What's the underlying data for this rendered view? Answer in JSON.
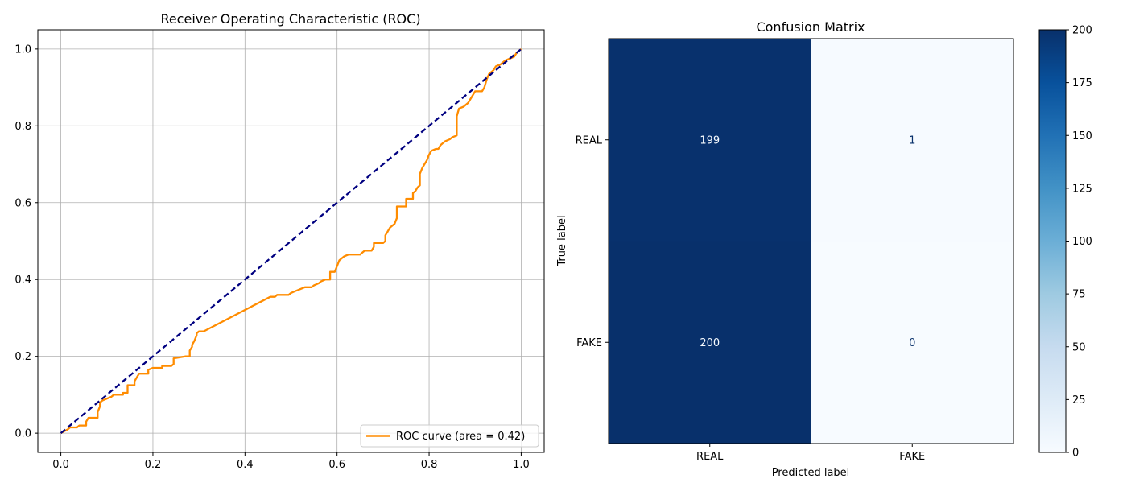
{
  "chart_data": [
    {
      "type": "line",
      "title": "Receiver Operating Characteristic (ROC)",
      "xlabel": "",
      "ylabel": "",
      "xlim": [
        -0.05,
        1.05
      ],
      "ylim": [
        -0.05,
        1.05
      ],
      "grid": true,
      "x_ticks": [
        "0.0",
        "0.2",
        "0.4",
        "0.6",
        "0.8",
        "1.0"
      ],
      "y_ticks": [
        "0.0",
        "0.2",
        "0.4",
        "0.6",
        "0.8",
        "1.0"
      ],
      "legend": {
        "placement": "lower-right",
        "entries": [
          "ROC curve (area = 0.42)"
        ]
      },
      "series": [
        {
          "name": "ROC curve (area = 0.42)",
          "color": "#ff8c00",
          "style": "solid",
          "points": [
            [
              0.0,
              0.0
            ],
            [
              0.015,
              0.01
            ],
            [
              0.02,
              0.015
            ],
            [
              0.035,
              0.015
            ],
            [
              0.04,
              0.02
            ],
            [
              0.055,
              0.02
            ],
            [
              0.055,
              0.03
            ],
            [
              0.06,
              0.04
            ],
            [
              0.08,
              0.04
            ],
            [
              0.08,
              0.055
            ],
            [
              0.085,
              0.07
            ],
            [
              0.085,
              0.08
            ],
            [
              0.09,
              0.085
            ],
            [
              0.1,
              0.09
            ],
            [
              0.11,
              0.095
            ],
            [
              0.115,
              0.1
            ],
            [
              0.135,
              0.1
            ],
            [
              0.135,
              0.105
            ],
            [
              0.145,
              0.105
            ],
            [
              0.145,
              0.125
            ],
            [
              0.16,
              0.125
            ],
            [
              0.16,
              0.135
            ],
            [
              0.165,
              0.145
            ],
            [
              0.17,
              0.155
            ],
            [
              0.19,
              0.155
            ],
            [
              0.19,
              0.165
            ],
            [
              0.2,
              0.17
            ],
            [
              0.22,
              0.17
            ],
            [
              0.22,
              0.175
            ],
            [
              0.24,
              0.175
            ],
            [
              0.245,
              0.18
            ],
            [
              0.245,
              0.195
            ],
            [
              0.27,
              0.2
            ],
            [
              0.27,
              0.2
            ],
            [
              0.28,
              0.2
            ],
            [
              0.28,
              0.215
            ],
            [
              0.285,
              0.225
            ],
            [
              0.285,
              0.23
            ],
            [
              0.29,
              0.24
            ],
            [
              0.295,
              0.255
            ],
            [
              0.295,
              0.26
            ],
            [
              0.3,
              0.265
            ],
            [
              0.31,
              0.265
            ],
            [
              0.455,
              0.355
            ],
            [
              0.465,
              0.355
            ],
            [
              0.47,
              0.36
            ],
            [
              0.495,
              0.36
            ],
            [
              0.5,
              0.365
            ],
            [
              0.51,
              0.37
            ],
            [
              0.52,
              0.375
            ],
            [
              0.53,
              0.38
            ],
            [
              0.545,
              0.38
            ],
            [
              0.55,
              0.385
            ],
            [
              0.56,
              0.39
            ],
            [
              0.565,
              0.395
            ],
            [
              0.575,
              0.4
            ],
            [
              0.585,
              0.4
            ],
            [
              0.585,
              0.42
            ],
            [
              0.595,
              0.42
            ],
            [
              0.6,
              0.435
            ],
            [
              0.605,
              0.45
            ],
            [
              0.61,
              0.455
            ],
            [
              0.615,
              0.46
            ],
            [
              0.625,
              0.465
            ],
            [
              0.65,
              0.465
            ],
            [
              0.655,
              0.47
            ],
            [
              0.66,
              0.475
            ],
            [
              0.675,
              0.475
            ],
            [
              0.68,
              0.485
            ],
            [
              0.68,
              0.495
            ],
            [
              0.7,
              0.495
            ],
            [
              0.705,
              0.5
            ],
            [
              0.705,
              0.515
            ],
            [
              0.71,
              0.525
            ],
            [
              0.715,
              0.535
            ],
            [
              0.72,
              0.54
            ],
            [
              0.725,
              0.545
            ],
            [
              0.73,
              0.56
            ],
            [
              0.73,
              0.59
            ],
            [
              0.75,
              0.59
            ],
            [
              0.75,
              0.61
            ],
            [
              0.765,
              0.61
            ],
            [
              0.765,
              0.625
            ],
            [
              0.77,
              0.63
            ],
            [
              0.775,
              0.64
            ],
            [
              0.78,
              0.645
            ],
            [
              0.78,
              0.675
            ],
            [
              0.785,
              0.69
            ],
            [
              0.79,
              0.7
            ],
            [
              0.795,
              0.71
            ],
            [
              0.8,
              0.725
            ],
            [
              0.805,
              0.735
            ],
            [
              0.815,
              0.74
            ],
            [
              0.82,
              0.74
            ],
            [
              0.825,
              0.75
            ],
            [
              0.83,
              0.755
            ],
            [
              0.835,
              0.76
            ],
            [
              0.845,
              0.765
            ],
            [
              0.85,
              0.77
            ],
            [
              0.86,
              0.775
            ],
            [
              0.86,
              0.825
            ],
            [
              0.865,
              0.845
            ],
            [
              0.875,
              0.85
            ],
            [
              0.885,
              0.86
            ],
            [
              0.89,
              0.87
            ],
            [
              0.895,
              0.88
            ],
            [
              0.9,
              0.89
            ],
            [
              0.915,
              0.89
            ],
            [
              0.92,
              0.9
            ],
            [
              0.925,
              0.92
            ],
            [
              0.93,
              0.935
            ],
            [
              0.94,
              0.945
            ],
            [
              0.945,
              0.955
            ],
            [
              0.955,
              0.96
            ],
            [
              0.965,
              0.97
            ],
            [
              0.975,
              0.975
            ],
            [
              0.985,
              0.98
            ],
            [
              0.99,
              0.99
            ],
            [
              1.0,
              1.0
            ]
          ]
        },
        {
          "name": "",
          "color": "#000080",
          "style": "dashed",
          "points": [
            [
              0.0,
              0.0
            ],
            [
              1.0,
              1.0
            ]
          ]
        }
      ]
    },
    {
      "type": "heatmap",
      "title": "Confusion Matrix",
      "xlabel": "Predicted label",
      "ylabel": "True label",
      "x_categories": [
        "REAL",
        "FAKE"
      ],
      "y_categories": [
        "REAL",
        "FAKE"
      ],
      "values": [
        [
          199,
          1
        ],
        [
          200,
          0
        ]
      ],
      "colormap": "Blues",
      "colorbar": {
        "min": 0,
        "max": 200,
        "ticks": [
          "0",
          "25",
          "50",
          "75",
          "100",
          "125",
          "150",
          "175",
          "200"
        ]
      }
    }
  ]
}
